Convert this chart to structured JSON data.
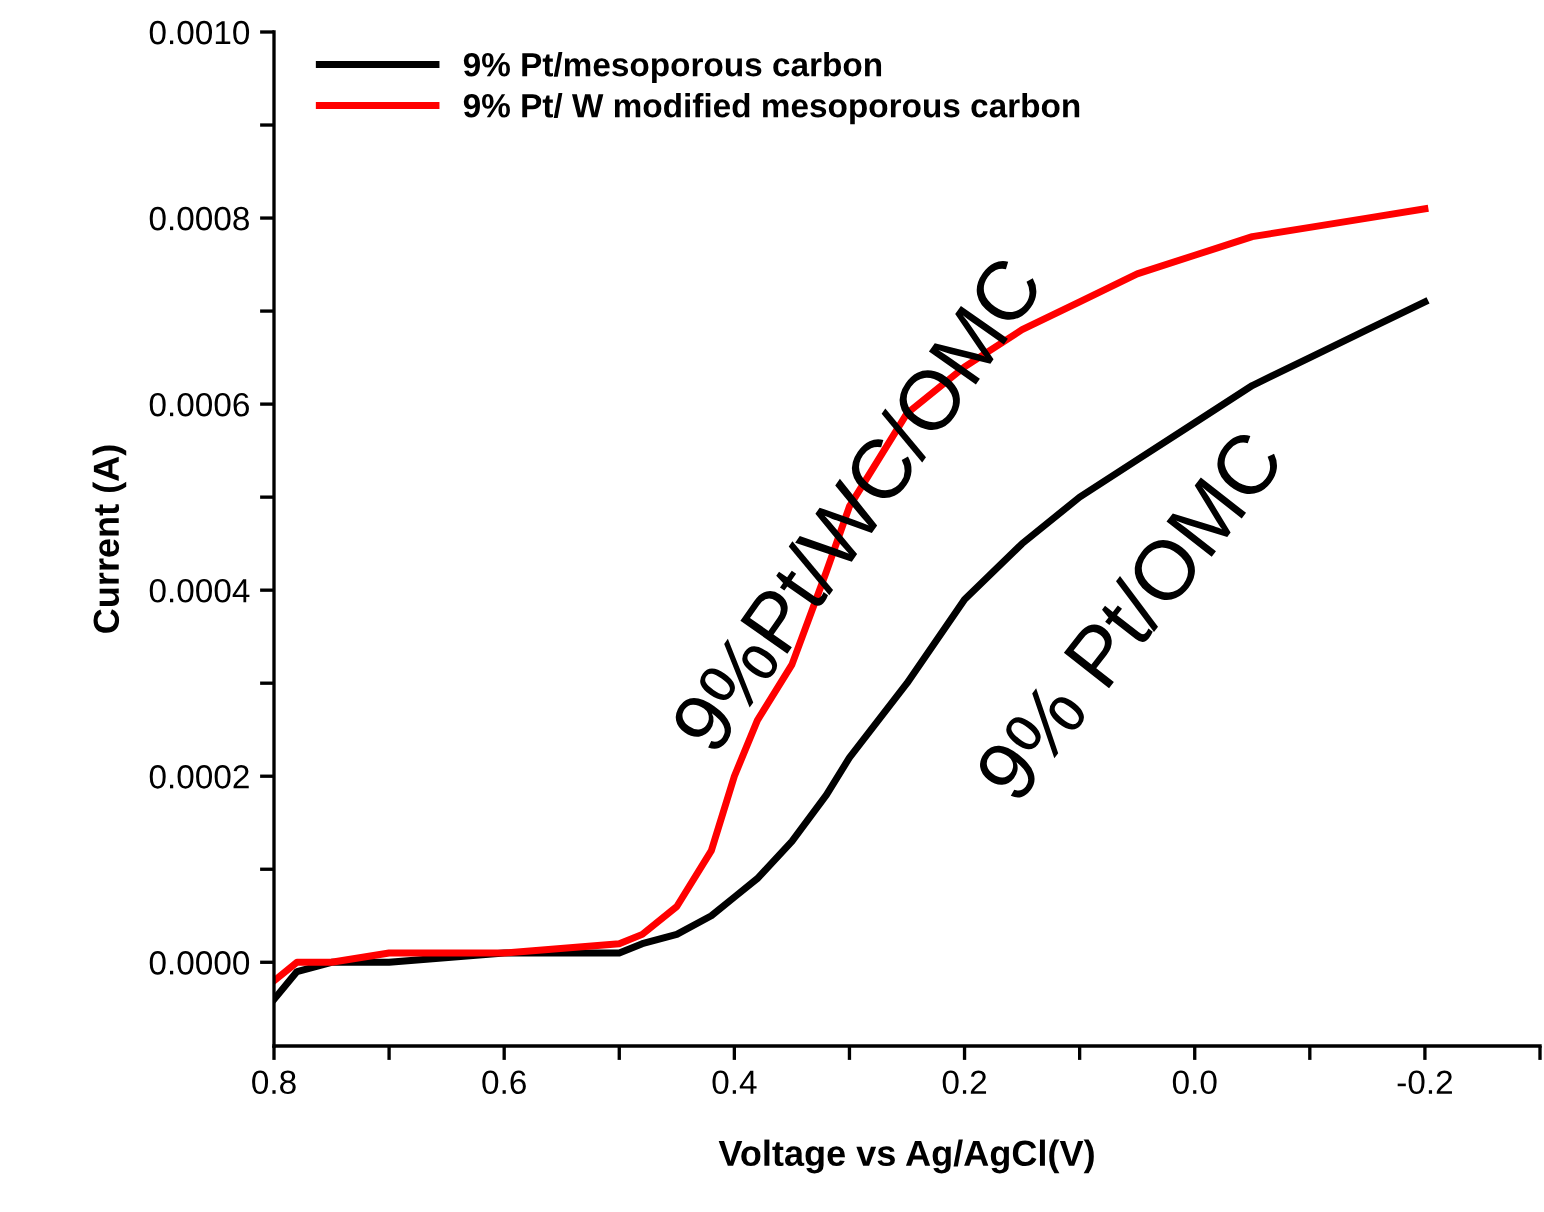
{
  "chart_data": {
    "type": "line",
    "xlabel": "Voltage vs Ag/AgCl(V)",
    "ylabel": "Current (A)",
    "x": [
      0.8,
      0.78,
      0.75,
      0.7,
      0.6,
      0.5,
      0.48,
      0.45,
      0.42,
      0.4,
      0.38,
      0.35,
      0.32,
      0.3,
      0.25,
      0.2,
      0.15,
      0.1,
      0.05,
      0.0,
      -0.05,
      -0.1,
      -0.15,
      -0.2
    ],
    "series": [
      {
        "name": "9% Pt/mesoporous carbon",
        "color": "#000000",
        "values": [
          -4e-05,
          -1e-05,
          0.0,
          0.0,
          1e-05,
          1e-05,
          2e-05,
          3e-05,
          5e-05,
          7e-05,
          9e-05,
          0.00013,
          0.00018,
          0.00022,
          0.0003,
          0.00039,
          0.00045,
          0.0005,
          0.00054,
          0.00058,
          0.00062,
          0.00065,
          0.00068,
          0.00071
        ]
      },
      {
        "name": "9% Pt/ W modified mesoporous carbon",
        "color": "#ff0000",
        "values": [
          -2e-05,
          0.0,
          0.0,
          1e-05,
          1e-05,
          2e-05,
          3e-05,
          6e-05,
          0.00012,
          0.0002,
          0.00026,
          0.00032,
          0.00042,
          0.00049,
          0.00059,
          0.00064,
          0.00068,
          0.00071,
          0.00074,
          0.00076,
          0.00078,
          0.00079,
          0.0008,
          0.00081
        ]
      }
    ],
    "xlim": [
      0.8,
      -0.3
    ],
    "xticks": [
      {
        "value": 0.8,
        "label": "0.8"
      },
      {
        "value": 0.7,
        "label": null
      },
      {
        "value": 0.6,
        "label": "0.6"
      },
      {
        "value": 0.5,
        "label": null
      },
      {
        "value": 0.4,
        "label": "0.4"
      },
      {
        "value": 0.3,
        "label": null
      },
      {
        "value": 0.2,
        "label": "0.2"
      },
      {
        "value": 0.1,
        "label": null
      },
      {
        "value": 0.0,
        "label": "0.0"
      },
      {
        "value": -0.1,
        "label": null
      },
      {
        "value": -0.2,
        "label": "-0.2"
      },
      {
        "value": -0.3,
        "label": null
      }
    ],
    "ylim": [
      -9e-05,
      0.001
    ],
    "yticks": [
      {
        "value": 0.0,
        "label": "0.0000"
      },
      {
        "value": 0.0001,
        "label": null
      },
      {
        "value": 0.0002,
        "label": "0.0002"
      },
      {
        "value": 0.0003,
        "label": null
      },
      {
        "value": 0.0004,
        "label": "0.0004"
      },
      {
        "value": 0.0005,
        "label": null
      },
      {
        "value": 0.0006,
        "label": "0.0006"
      },
      {
        "value": 0.0007,
        "label": null
      },
      {
        "value": 0.0008,
        "label": "0.0008"
      },
      {
        "value": 0.0009,
        "label": null
      },
      {
        "value": 0.001,
        "label": "0.0010"
      }
    ],
    "annotations": [
      "9%Pt/WC/OMC",
      "9% Pt/OMC"
    ],
    "legend": "top left",
    "grid": false,
    "marker": "none",
    "line_style": "solid"
  }
}
